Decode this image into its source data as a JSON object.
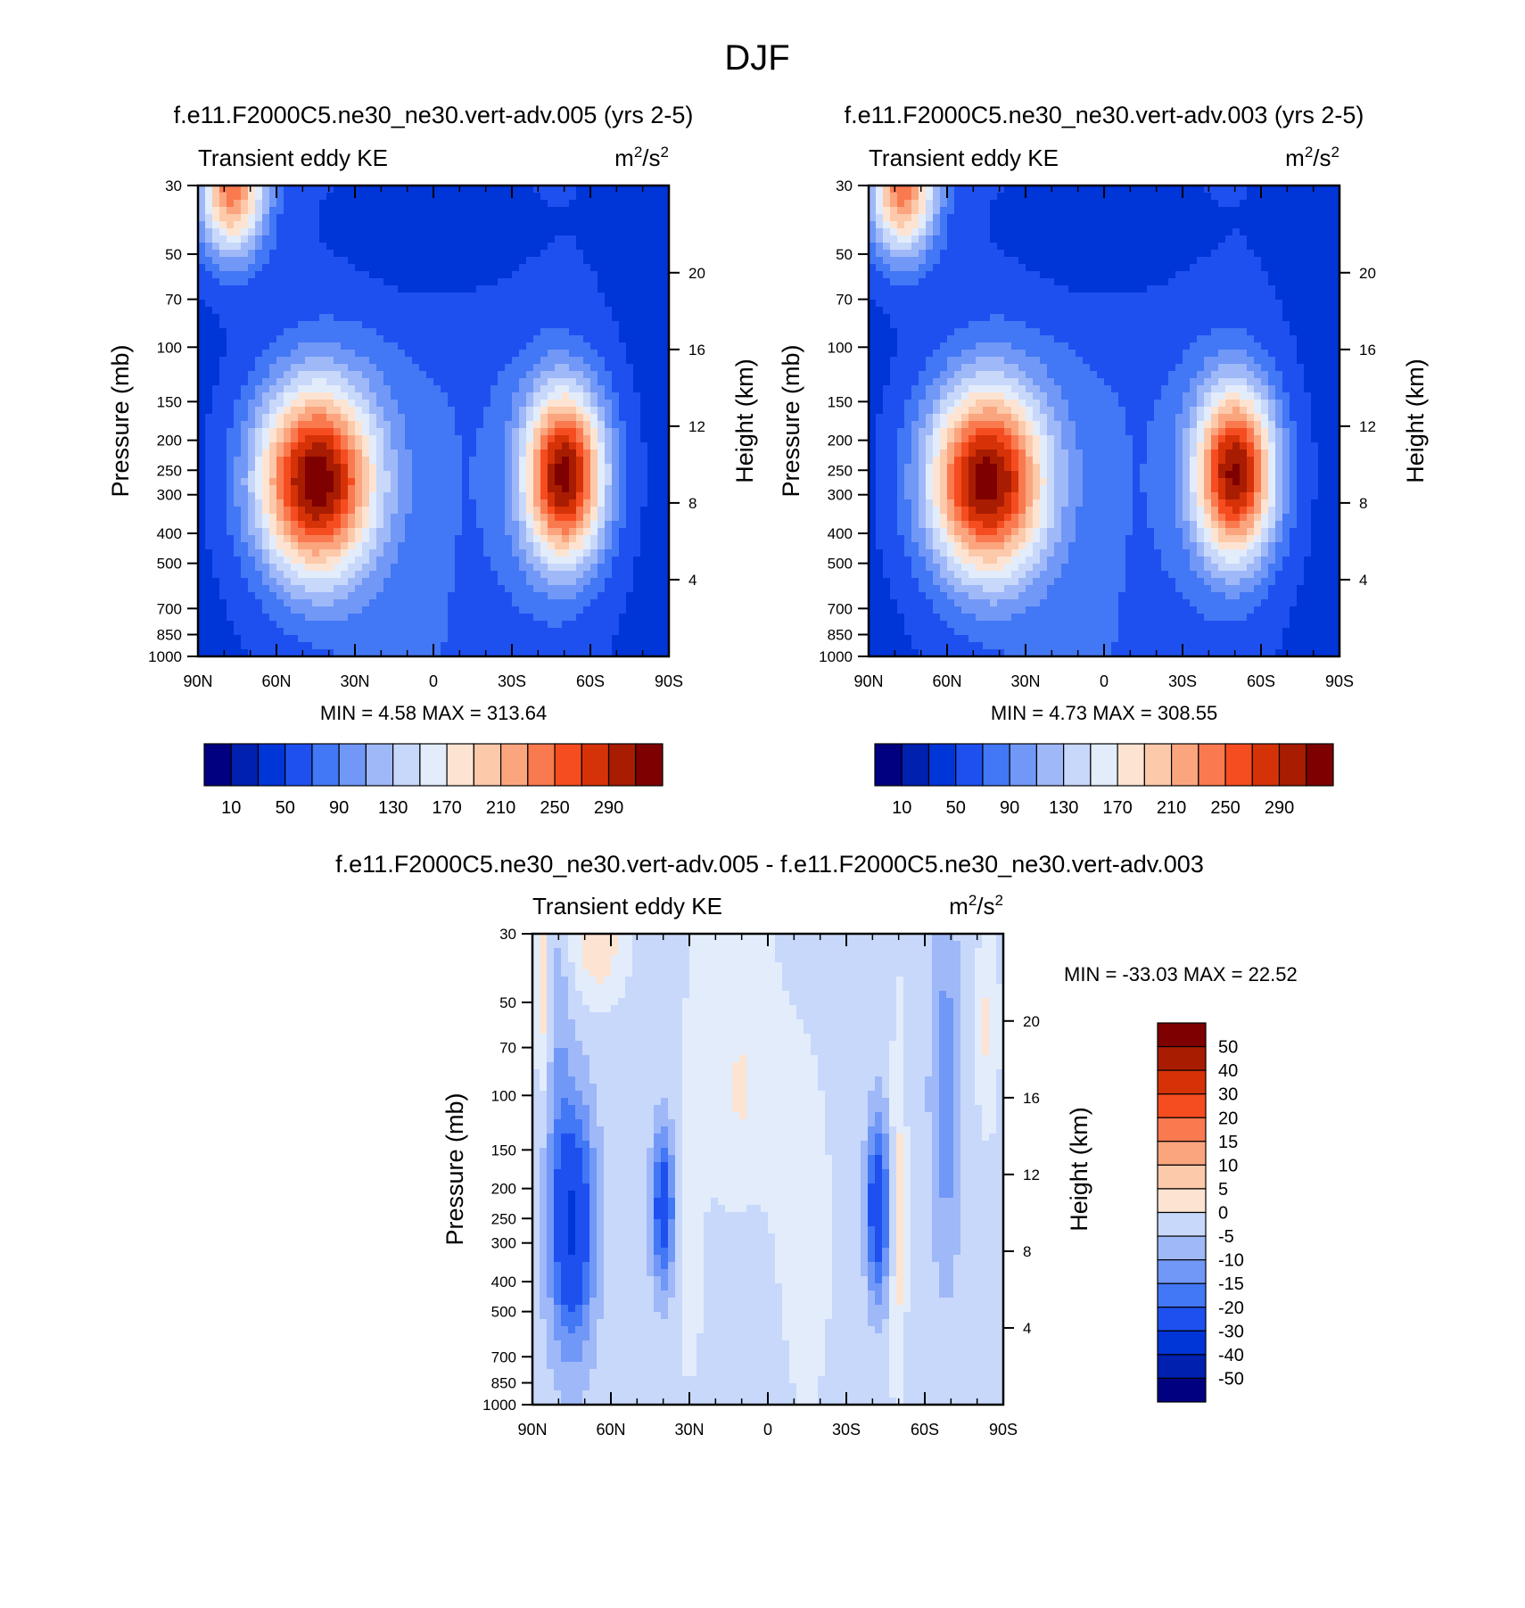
{
  "figure_title": "DJF",
  "colors": {
    "abs_palette": [
      "#000080",
      "#0020b0",
      "#0035d8",
      "#1e50f0",
      "#4277f5",
      "#7198f7",
      "#9fb8f8",
      "#c8d8fb",
      "#e2ecfb",
      "#fde4d2",
      "#fcc9aa",
      "#fba57f",
      "#fa7a50",
      "#f54d20",
      "#d63208",
      "#a81c02",
      "#7f0000"
    ],
    "diff_palette": [
      "#000080",
      "#0020b0",
      "#0035d8",
      "#1e50f0",
      "#4277f5",
      "#7198f7",
      "#9fb8f8",
      "#c8d8fb",
      "#e2ecfb",
      "#fde4d2",
      "#fcc9aa",
      "#fba57f",
      "#fa7a50",
      "#f54d20",
      "#d63208",
      "#a81c02",
      "#7f0000"
    ]
  },
  "chart_data": [
    {
      "type": "heatmap",
      "title": "f.e11.F2000C5.ne30_ne30.vert-adv.005 (yrs 2-5)",
      "left_label": "Transient eddy KE",
      "units": "m²/s²",
      "units_base": "m",
      "units_mid": "/s",
      "units_sup": "2",
      "ylabel": "Pressure (mb)",
      "ylabel2": "Height (km)",
      "x_ticks": [
        "90N",
        "60N",
        "30N",
        "0",
        "30S",
        "60S",
        "90S"
      ],
      "x_values": [
        90,
        60,
        30,
        0,
        -30,
        -60,
        -90
      ],
      "p_ticks": [
        "30",
        "50",
        "70",
        "100",
        "150",
        "200",
        "250",
        "300",
        "400",
        "500",
        "700",
        "850",
        "1000"
      ],
      "p_values": [
        30,
        50,
        70,
        100,
        150,
        200,
        250,
        300,
        400,
        500,
        700,
        850,
        1000
      ],
      "h_ticks": [
        "20",
        "16",
        "12",
        "8",
        "4"
      ],
      "h_values": [
        20,
        16,
        12,
        8,
        4
      ],
      "ylim": [
        1000,
        30
      ],
      "min_max_text": "MIN =   4.58  MAX = 313.64",
      "min": 4.58,
      "max": 313.64,
      "colorbar_labels": [
        "10",
        "50",
        "90",
        "130",
        "170",
        "210",
        "250",
        "290"
      ],
      "levels": [
        10,
        30,
        50,
        70,
        90,
        110,
        130,
        150,
        170,
        190,
        210,
        230,
        250,
        270,
        290,
        310
      ],
      "features": [
        {
          "lat": 45,
          "p": 270,
          "value": 310,
          "lat_width": 16,
          "logp_width": 0.22
        },
        {
          "lat": -50,
          "p": 260,
          "value": 305,
          "lat_width": 11,
          "logp_width": 0.2
        },
        {
          "lat": 77,
          "p": 30,
          "value": 240,
          "lat_width": 9,
          "logp_width": 0.16
        },
        {
          "lat": 0,
          "p": 40,
          "value": 2,
          "lat_width": 25,
          "logp_width": 0.2
        }
      ]
    },
    {
      "type": "heatmap",
      "title": "f.e11.F2000C5.ne30_ne30.vert-adv.003 (yrs 2-5)",
      "left_label": "Transient eddy KE",
      "units": "m²/s²",
      "units_base": "m",
      "units_mid": "/s",
      "units_sup": "2",
      "ylabel": "Pressure (mb)",
      "ylabel2": "Height (km)",
      "x_ticks": [
        "90N",
        "60N",
        "30N",
        "0",
        "30S",
        "60S",
        "90S"
      ],
      "x_values": [
        90,
        60,
        30,
        0,
        -30,
        -60,
        -90
      ],
      "p_ticks": [
        "30",
        "50",
        "70",
        "100",
        "150",
        "200",
        "250",
        "300",
        "400",
        "500",
        "700",
        "850",
        "1000"
      ],
      "p_values": [
        30,
        50,
        70,
        100,
        150,
        200,
        250,
        300,
        400,
        500,
        700,
        850,
        1000
      ],
      "h_ticks": [
        "20",
        "16",
        "12",
        "8",
        "4"
      ],
      "h_values": [
        20,
        16,
        12,
        8,
        4
      ],
      "ylim": [
        1000,
        30
      ],
      "min_max_text": "MIN =   4.73  MAX = 308.55",
      "min": 4.73,
      "max": 308.55,
      "colorbar_labels": [
        "10",
        "50",
        "90",
        "130",
        "170",
        "210",
        "250",
        "290"
      ],
      "levels": [
        10,
        30,
        50,
        70,
        90,
        110,
        130,
        150,
        170,
        190,
        210,
        230,
        250,
        270,
        290,
        310
      ],
      "features": [
        {
          "lat": 45,
          "p": 270,
          "value": 305,
          "lat_width": 16,
          "logp_width": 0.22
        },
        {
          "lat": -50,
          "p": 255,
          "value": 300,
          "lat_width": 11,
          "logp_width": 0.2
        },
        {
          "lat": 77,
          "p": 30,
          "value": 240,
          "lat_width": 9,
          "logp_width": 0.16
        },
        {
          "lat": 0,
          "p": 40,
          "value": 2,
          "lat_width": 25,
          "logp_width": 0.2
        }
      ]
    },
    {
      "type": "heatmap",
      "title": "f.e11.F2000C5.ne30_ne30.vert-adv.005 - f.e11.F2000C5.ne30_ne30.vert-adv.003",
      "left_label": "Transient eddy KE",
      "units": "m²/s²",
      "units_base": "m",
      "units_mid": "/s",
      "units_sup": "2",
      "ylabel": "Pressure (mb)",
      "ylabel2": "Height (km)",
      "x_ticks": [
        "90N",
        "60N",
        "30N",
        "0",
        "30S",
        "60S",
        "90S"
      ],
      "x_values": [
        90,
        60,
        30,
        0,
        -30,
        -60,
        -90
      ],
      "p_ticks": [
        "30",
        "50",
        "70",
        "100",
        "150",
        "200",
        "250",
        "300",
        "400",
        "500",
        "700",
        "850",
        "1000"
      ],
      "p_values": [
        30,
        50,
        70,
        100,
        150,
        200,
        250,
        300,
        400,
        500,
        700,
        850,
        1000
      ],
      "h_ticks": [
        "20",
        "16",
        "12",
        "8",
        "4"
      ],
      "h_values": [
        20,
        16,
        12,
        8,
        4
      ],
      "ylim": [
        1000,
        30
      ],
      "min_max_text": "MIN = -33.03  MAX =  22.52",
      "min": -33.03,
      "max": 22.52,
      "colorbar_labels": [
        "50",
        "40",
        "30",
        "20",
        "15",
        "10",
        "5",
        "0",
        "-5",
        "-10",
        "-15",
        "-20",
        "-30",
        "-40",
        "-50"
      ],
      "levels": [
        -50,
        -40,
        -30,
        -20,
        -15,
        -10,
        -5,
        0,
        5,
        10,
        15,
        20,
        30,
        40,
        50
      ],
      "features": [
        {
          "lat": 75,
          "p": 260,
          "value": -30,
          "lat_width": 6,
          "logp_width": 0.28
        },
        {
          "lat": 40,
          "p": 230,
          "value": -25,
          "lat_width": 3,
          "logp_width": 0.18
        },
        {
          "lat": -42,
          "p": 230,
          "value": -27,
          "lat_width": 3,
          "logp_width": 0.2
        },
        {
          "lat": -68,
          "p": 100,
          "value": -12,
          "lat_width": 4,
          "logp_width": 0.4
        },
        {
          "lat": 80,
          "p": 60,
          "value": -6,
          "lat_width": 3,
          "logp_width": 0.3
        },
        {
          "lat": 65,
          "p": 33,
          "value": 11,
          "lat_width": 7,
          "logp_width": 0.12
        },
        {
          "lat": 86,
          "p": 45,
          "value": 10,
          "lat_width": 2,
          "logp_width": 0.25
        },
        {
          "lat": -84,
          "p": 60,
          "value": 8,
          "lat_width": 3,
          "logp_width": 0.22
        },
        {
          "lat": 30,
          "p": 350,
          "value": 6,
          "lat_width": 3,
          "logp_width": 0.25
        },
        {
          "lat": -50,
          "p": 250,
          "value": 9,
          "lat_width": 2,
          "logp_width": 0.45
        },
        {
          "lat": 10,
          "p": 95,
          "value": 5,
          "lat_width": 4,
          "logp_width": 0.12
        },
        {
          "lat": 15,
          "p": 60,
          "value": 4,
          "lat_width": 14,
          "logp_width": 0.5
        },
        {
          "lat": -15,
          "p": 300,
          "value": 3,
          "lat_width": 10,
          "logp_width": 0.6
        }
      ]
    }
  ]
}
